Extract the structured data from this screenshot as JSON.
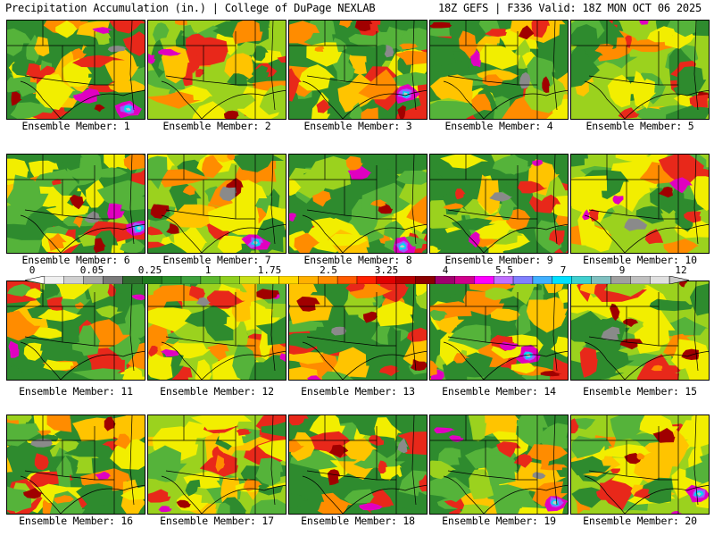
{
  "header": {
    "left_title": "Precipitation Accumulation (in.) | College of DuPage NEXLAB",
    "right_title": "18Z GEFS | F336 Valid: 18Z MON OCT 06 2025"
  },
  "panels": [
    {
      "label": "Ensemble Member: 1"
    },
    {
      "label": "Ensemble Member: 2"
    },
    {
      "label": "Ensemble Member: 3"
    },
    {
      "label": "Ensemble Member: 4"
    },
    {
      "label": "Ensemble Member: 5"
    },
    {
      "label": "Ensemble Member: 6"
    },
    {
      "label": "Ensemble Member: 7"
    },
    {
      "label": "Ensemble Member: 8"
    },
    {
      "label": "Ensemble Member: 9"
    },
    {
      "label": "Ensemble Member: 10"
    },
    {
      "label": "Ensemble Member: 11"
    },
    {
      "label": "Ensemble Member: 12"
    },
    {
      "label": "Ensemble Member: 13"
    },
    {
      "label": "Ensemble Member: 14"
    },
    {
      "label": "Ensemble Member: 15"
    },
    {
      "label": "Ensemble Member: 16"
    },
    {
      "label": "Ensemble Member: 17"
    },
    {
      "label": "Ensemble Member: 18"
    },
    {
      "label": "Ensemble Member: 19"
    },
    {
      "label": "Ensemble Member: 20"
    }
  ],
  "colorbar": {
    "labels": [
      "0",
      "0.05",
      "0.25",
      "1",
      "1.75",
      "2.5",
      "3.25",
      "4",
      "5.5",
      "7",
      "9",
      "12"
    ],
    "colors": [
      "#f0f0f0",
      "#d0d0d0",
      "#a8a8a8",
      "#7a7a7a",
      "#2d6b2d",
      "#1f7a1f",
      "#2a8f2a",
      "#3da13d",
      "#5cb82e",
      "#8fcf1f",
      "#c8e01a",
      "#f0f000",
      "#ffd700",
      "#ffb000",
      "#ff8c00",
      "#ff5a00",
      "#ff2000",
      "#e00000",
      "#b80000",
      "#8b0000",
      "#a0006e",
      "#d0008c",
      "#ff00ff",
      "#c070ff",
      "#8080ff",
      "#40b0ff",
      "#00e0ff",
      "#40d0d0",
      "#80c0c0",
      "#a0a0a0",
      "#c0c0c0",
      "#e0e0e0"
    ]
  }
}
